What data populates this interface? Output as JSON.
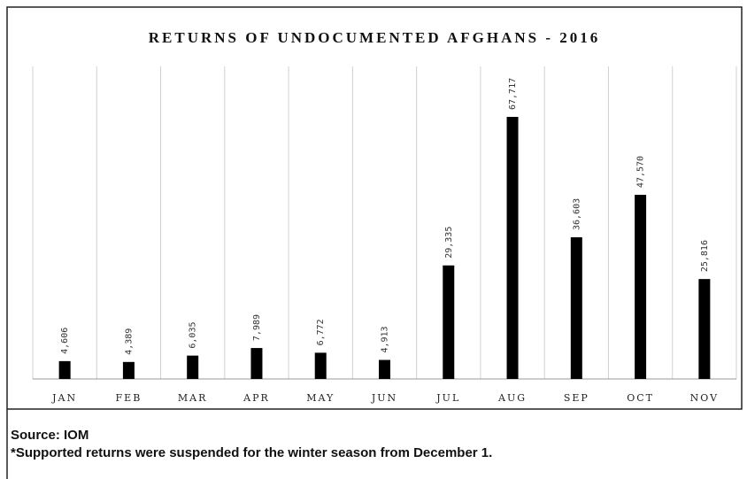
{
  "chart_data": {
    "type": "bar",
    "title": "RETURNS OF UNDOCUMENTED AFGHANS - 2016",
    "categories": [
      "JAN",
      "FEB",
      "MAR",
      "APR",
      "MAY",
      "JUN",
      "JUL",
      "AUG",
      "SEP",
      "OCT",
      "NOV"
    ],
    "values": [
      4606,
      4389,
      6035,
      7989,
      6772,
      4913,
      29335,
      67717,
      36603,
      47570,
      25816
    ],
    "value_labels": [
      "4,606",
      "4,389",
      "6,035",
      "7,989",
      "6,772",
      "4,913",
      "29,335",
      "67,717",
      "36,603",
      "47,570",
      "25,816"
    ],
    "color": "#000000",
    "grid": true
  },
  "footer": {
    "source": "Source: IOM",
    "note": "*Supported returns were suspended for the winter season from December 1."
  }
}
